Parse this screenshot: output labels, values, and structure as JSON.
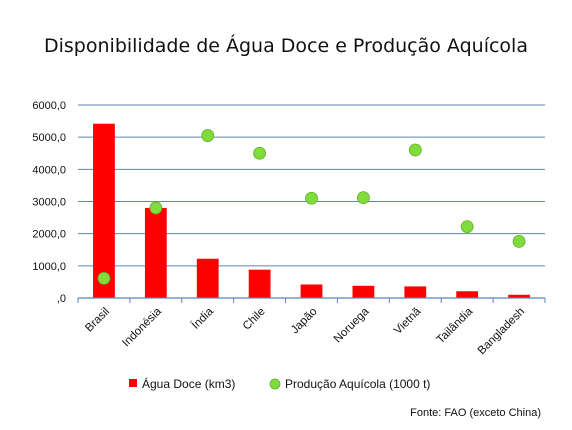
{
  "chart_data": {
    "type": "bar",
    "title": "Disponibilidade  de Água Doce e Produção Aquícola",
    "categories": [
      "Brasil",
      "Indonésia",
      "Índia",
      "Chile",
      "Japão",
      "Noruega",
      "Vietnã",
      "Tailândia",
      "Bangladesh"
    ],
    "series": [
      {
        "name": "Água Doce (km3)",
        "type": "bar",
        "color": "#ff0000",
        "values": [
          5418,
          2800,
          1220,
          880,
          420,
          380,
          360,
          210,
          100
        ]
      },
      {
        "name": "Produção Aquícola (1000 t)",
        "type": "scatter",
        "color": "#7fdc3a",
        "values": [
          610,
          2800,
          5050,
          4500,
          3100,
          3120,
          4600,
          2220,
          1760
        ]
      }
    ],
    "ylim": [
      0,
      6000
    ],
    "yticks": [
      "6000,0",
      "5000,0",
      "4000,0",
      "3000,0",
      "2000,0",
      "1000,0",
      ",0"
    ],
    "grid": true,
    "legend_position": "bottom",
    "source": "Fonte: FAO (exceto China)"
  }
}
